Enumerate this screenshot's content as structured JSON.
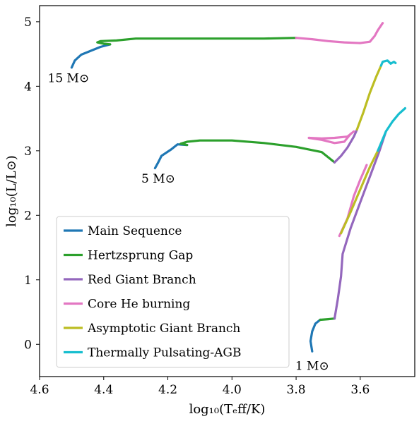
{
  "chart_data": {
    "type": "line",
    "title": "",
    "xlabel": "log₁₀(Tₑff/K)",
    "ylabel": "log₁₀(L/L⊙)",
    "xlim": [
      4.6,
      3.43
    ],
    "ylim": [
      -0.5,
      5.25
    ],
    "x_inverted": true,
    "xticks": [
      4.6,
      4.4,
      4.2,
      4.0,
      3.8,
      3.6
    ],
    "xtick_labels": [
      "4.6",
      "4.4",
      "4.2",
      "4.0",
      "3.8",
      "3.6"
    ],
    "yticks": [
      0,
      1,
      2,
      3,
      4,
      5
    ],
    "ytick_labels": [
      "0",
      "1",
      "2",
      "3",
      "4",
      "5"
    ],
    "grid": false,
    "legend_position": "lower-left",
    "series": [
      {
        "name": "Main Sequence",
        "color": "#1f77b4"
      },
      {
        "name": "Hertzsprung Gap",
        "color": "#2ca02c"
      },
      {
        "name": "Red Giant Branch",
        "color": "#9467bd"
      },
      {
        "name": "Core He burning",
        "color": "#e377c2"
      },
      {
        "name": "Asymptotic Giant Branch",
        "color": "#bcbd22"
      },
      {
        "name": "Thermally Pulsating-AGB",
        "color": "#17becf"
      }
    ],
    "tracks": [
      {
        "mass_label": "15 M⊙",
        "label_at": [
          4.51,
          4.13
        ],
        "segments": [
          {
            "phase": 0,
            "points": [
              [
                4.5,
                4.29
              ],
              [
                4.49,
                4.4
              ],
              [
                4.47,
                4.49
              ],
              [
                4.44,
                4.55
              ],
              [
                4.41,
                4.61
              ],
              [
                4.38,
                4.65
              ]
            ]
          },
          {
            "phase": 1,
            "points": [
              [
                4.38,
                4.65
              ],
              [
                4.4,
                4.66
              ],
              [
                4.42,
                4.68
              ],
              [
                4.41,
                4.7
              ],
              [
                4.36,
                4.71
              ],
              [
                4.3,
                4.74
              ],
              [
                4.2,
                4.74
              ],
              [
                4.1,
                4.74
              ],
              [
                4.0,
                4.74
              ],
              [
                3.9,
                4.74
              ],
              [
                3.8,
                4.75
              ]
            ]
          },
          {
            "phase": 3,
            "points": [
              [
                3.8,
                4.75
              ],
              [
                3.75,
                4.73
              ],
              [
                3.7,
                4.7
              ],
              [
                3.65,
                4.68
              ],
              [
                3.6,
                4.67
              ],
              [
                3.57,
                4.69
              ],
              [
                3.555,
                4.78
              ],
              [
                3.545,
                4.87
              ],
              [
                3.53,
                4.98
              ]
            ]
          }
        ]
      },
      {
        "mass_label": "5 M⊙",
        "label_at": [
          4.23,
          2.57
        ],
        "segments": [
          {
            "phase": 0,
            "points": [
              [
                4.24,
                2.73
              ],
              [
                4.23,
                2.82
              ],
              [
                4.22,
                2.92
              ],
              [
                4.19,
                3.02
              ],
              [
                4.17,
                3.1
              ],
              [
                4.14,
                3.09
              ]
            ]
          },
          {
            "phase": 1,
            "points": [
              [
                4.14,
                3.09
              ],
              [
                4.16,
                3.11
              ],
              [
                4.14,
                3.14
              ],
              [
                4.1,
                3.16
              ],
              [
                4.0,
                3.16
              ],
              [
                3.9,
                3.12
              ],
              [
                3.8,
                3.06
              ],
              [
                3.72,
                2.98
              ],
              [
                3.68,
                2.82
              ]
            ]
          },
          {
            "phase": 2,
            "points": [
              [
                3.68,
                2.82
              ],
              [
                3.66,
                2.92
              ],
              [
                3.64,
                3.05
              ],
              [
                3.62,
                3.22
              ],
              [
                3.61,
                3.33
              ]
            ]
          },
          {
            "phase": 3,
            "points": [
              [
                3.76,
                3.2
              ],
              [
                3.72,
                3.17
              ],
              [
                3.68,
                3.12
              ],
              [
                3.65,
                3.14
              ],
              [
                3.63,
                3.26
              ]
            ]
          },
          {
            "phase": 3,
            "points": [
              [
                3.76,
                3.2
              ],
              [
                3.72,
                3.19
              ],
              [
                3.68,
                3.2
              ],
              [
                3.64,
                3.22
              ],
              [
                3.62,
                3.3
              ]
            ]
          },
          {
            "phase": 4,
            "points": [
              [
                3.61,
                3.33
              ],
              [
                3.59,
                3.6
              ],
              [
                3.57,
                3.9
              ],
              [
                3.55,
                4.15
              ],
              [
                3.535,
                4.32
              ]
            ]
          },
          {
            "phase": 5,
            "points": [
              [
                3.535,
                4.32
              ],
              [
                3.53,
                4.38
              ],
              [
                3.515,
                4.4
              ],
              [
                3.505,
                4.35
              ],
              [
                3.495,
                4.38
              ],
              [
                3.49,
                4.36
              ]
            ]
          }
        ]
      },
      {
        "mass_label": "1 M⊙",
        "label_at": [
          3.75,
          -0.33
        ],
        "segments": [
          {
            "phase": 0,
            "points": [
              [
                3.75,
                -0.11
              ],
              [
                3.755,
                0.05
              ],
              [
                3.75,
                0.2
              ],
              [
                3.74,
                0.32
              ],
              [
                3.725,
                0.38
              ]
            ]
          },
          {
            "phase": 1,
            "points": [
              [
                3.725,
                0.38
              ],
              [
                3.7,
                0.39
              ],
              [
                3.68,
                0.4
              ]
            ]
          },
          {
            "phase": 2,
            "points": [
              [
                3.68,
                0.4
              ],
              [
                3.67,
                0.7
              ],
              [
                3.66,
                1.05
              ],
              [
                3.655,
                1.4
              ],
              [
                3.63,
                1.8
              ],
              [
                3.6,
                2.2
              ],
              [
                3.57,
                2.6
              ],
              [
                3.54,
                3.0
              ],
              [
                3.52,
                3.3
              ]
            ]
          },
          {
            "phase": 3,
            "points": [
              [
                3.665,
                1.68
              ],
              [
                3.64,
                1.95
              ],
              [
                3.62,
                2.3
              ],
              [
                3.6,
                2.55
              ],
              [
                3.58,
                2.78
              ]
            ]
          },
          {
            "phase": 4,
            "points": [
              [
                3.66,
                1.72
              ],
              [
                3.63,
                2.05
              ],
              [
                3.6,
                2.4
              ],
              [
                3.57,
                2.75
              ],
              [
                3.545,
                3.0
              ]
            ]
          },
          {
            "phase": 5,
            "points": [
              [
                3.545,
                3.0
              ],
              [
                3.52,
                3.3
              ],
              [
                3.5,
                3.45
              ],
              [
                3.48,
                3.57
              ],
              [
                3.46,
                3.66
              ]
            ]
          }
        ]
      }
    ]
  }
}
